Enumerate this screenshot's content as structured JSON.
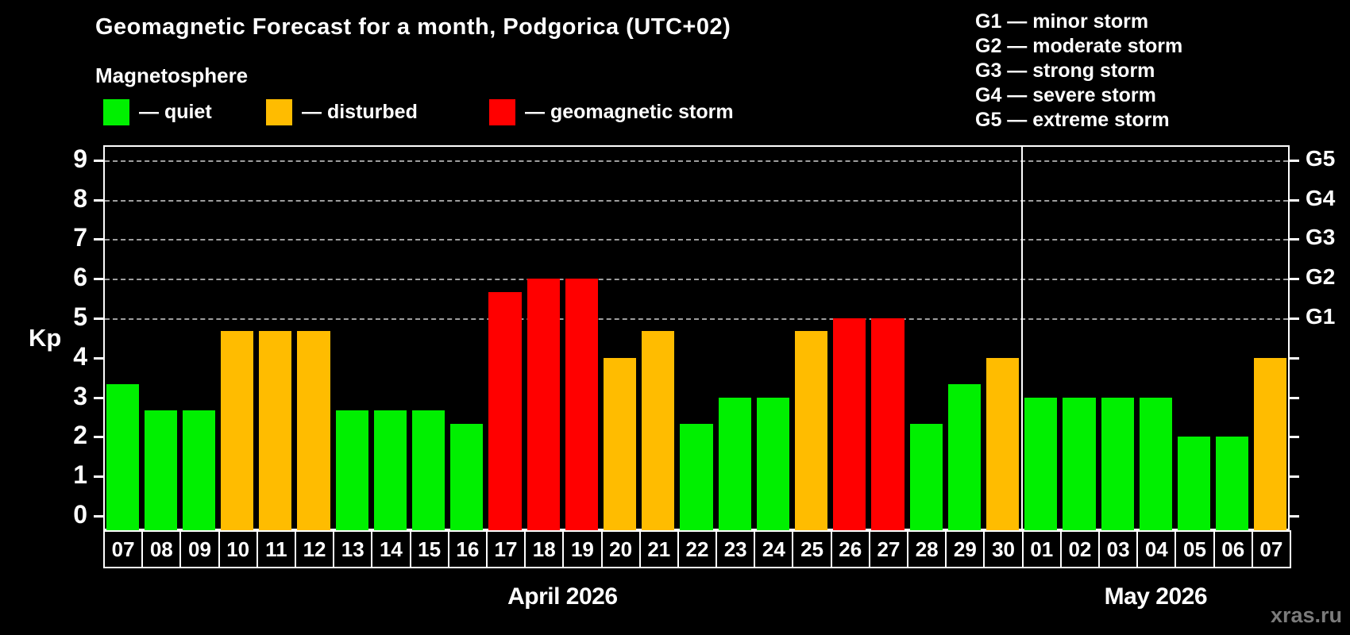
{
  "title": "Geomagnetic Forecast for a month, Podgorica (UTC+02)",
  "subtitle": "Magnetosphere",
  "legend": {
    "items": [
      {
        "key": "quiet",
        "label": "— quiet",
        "color": "#00f000"
      },
      {
        "key": "disturbed",
        "label": "— disturbed",
        "color": "#ffbc00"
      },
      {
        "key": "storm",
        "label": "— geomagnetic storm",
        "color": "#ff0000"
      }
    ]
  },
  "g_legend": [
    "G1 — minor storm",
    "G2 — moderate storm",
    "G3 — strong storm",
    "G4 — severe storm",
    "G5 — extreme storm"
  ],
  "watermark": "xras.ru",
  "chart_data": {
    "type": "bar",
    "title": "Geomagnetic Forecast for a month, Podgorica (UTC+02)",
    "ylabel": "Kp",
    "ylim": [
      0,
      9
    ],
    "yticks": [
      0,
      1,
      2,
      3,
      4,
      5,
      6,
      7,
      8,
      9
    ],
    "gridlines_at": [
      5,
      6,
      7,
      8,
      9
    ],
    "grid": "dashed, only at storm levels G1–G5",
    "legend_position": "top",
    "right_axis_labels": [
      {
        "label": "G1",
        "kp": 5
      },
      {
        "label": "G2",
        "kp": 6
      },
      {
        "label": "G3",
        "kp": 7
      },
      {
        "label": "G4",
        "kp": 8
      },
      {
        "label": "G5",
        "kp": 9
      }
    ],
    "months": [
      {
        "label": "April 2026",
        "days": 24
      },
      {
        "label": "May 2026",
        "days": 7
      }
    ],
    "categories": [
      "07",
      "08",
      "09",
      "10",
      "11",
      "12",
      "13",
      "14",
      "15",
      "16",
      "17",
      "18",
      "19",
      "20",
      "21",
      "22",
      "23",
      "24",
      "25",
      "26",
      "27",
      "28",
      "29",
      "30",
      "01",
      "02",
      "03",
      "04",
      "05",
      "06",
      "07"
    ],
    "values": [
      3.33,
      2.67,
      2.67,
      4.67,
      4.67,
      4.67,
      2.67,
      2.67,
      2.67,
      2.33,
      5.67,
      6,
      6,
      4,
      4.67,
      2.33,
      3,
      3,
      4.67,
      5,
      5,
      2.33,
      3.33,
      4,
      3,
      3,
      3,
      3,
      2,
      2,
      4
    ],
    "statuses": [
      "quiet",
      "quiet",
      "quiet",
      "disturbed",
      "disturbed",
      "disturbed",
      "quiet",
      "quiet",
      "quiet",
      "quiet",
      "storm",
      "storm",
      "storm",
      "disturbed",
      "disturbed",
      "quiet",
      "quiet",
      "quiet",
      "disturbed",
      "storm",
      "storm",
      "quiet",
      "quiet",
      "disturbed",
      "quiet",
      "quiet",
      "quiet",
      "quiet",
      "quiet",
      "quiet",
      "disturbed"
    ],
    "colors": {
      "quiet": "#00f000",
      "disturbed": "#ffbc00",
      "storm": "#ff0000"
    }
  }
}
